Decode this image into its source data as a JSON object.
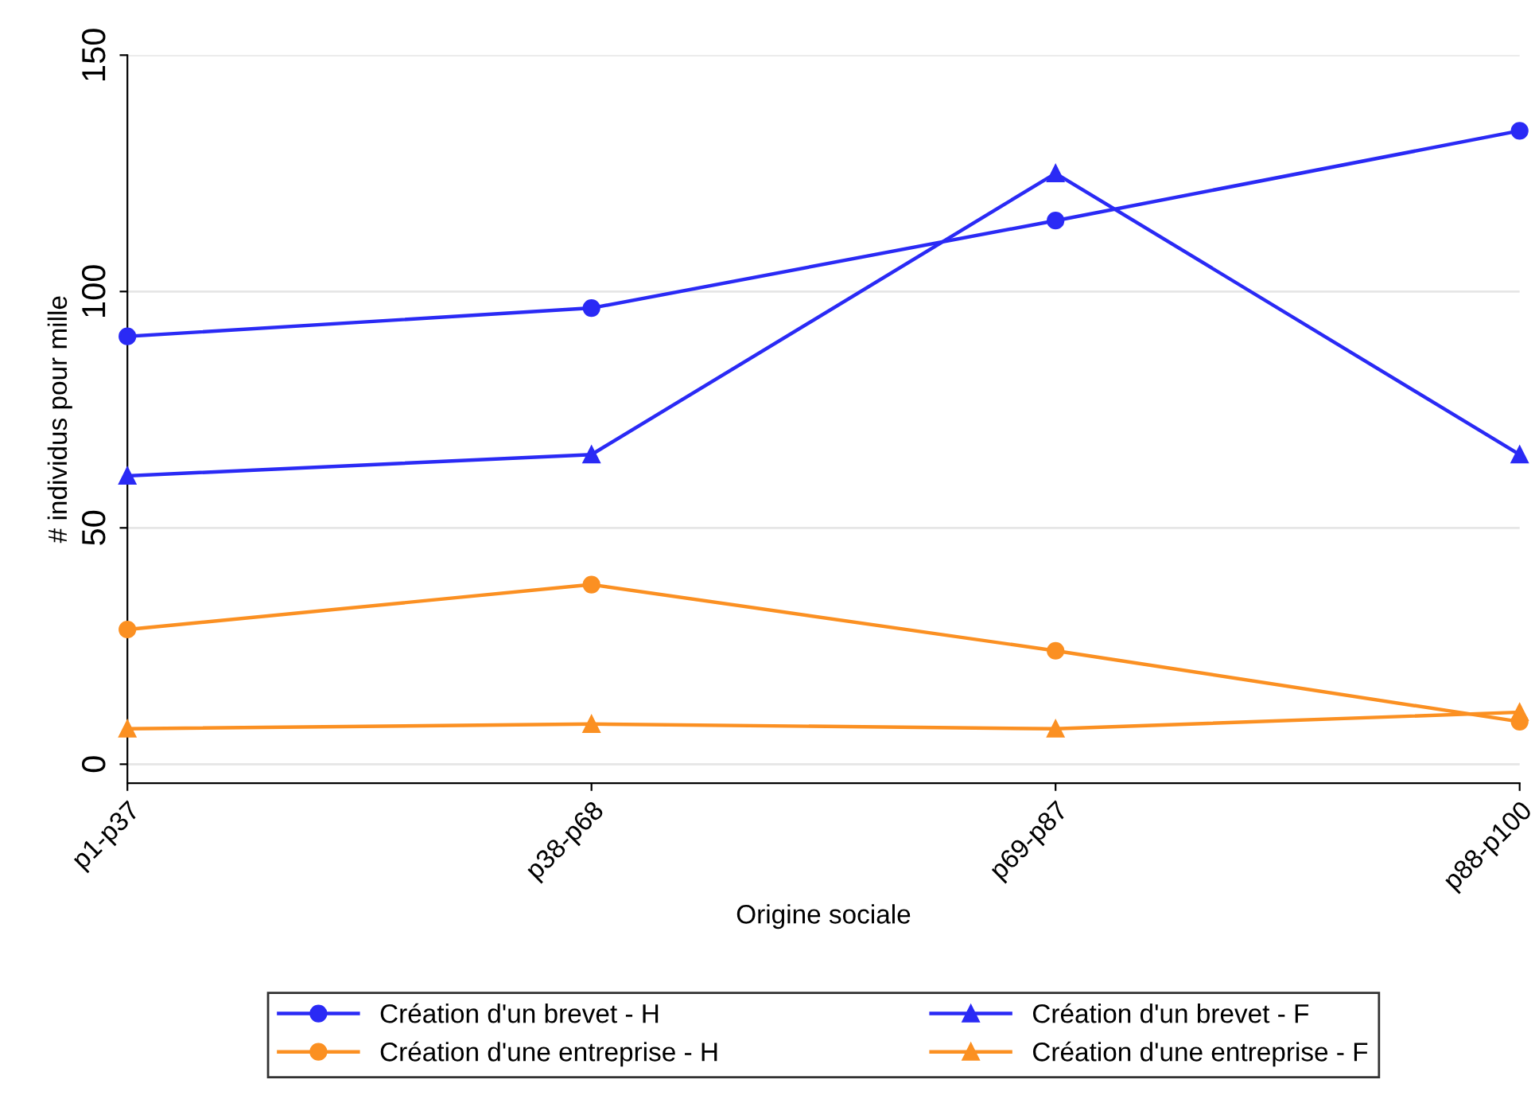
{
  "chart_data": {
    "type": "line",
    "xlabel": "Origine sociale",
    "ylabel": "# individus pour mille",
    "categories": [
      "p1-p37",
      "p38-p68",
      "p69-p87",
      "p88-p100"
    ],
    "series": [
      {
        "name": "Création d'un brevet - H",
        "color": "#2a2af5",
        "marker": "circle",
        "values": [
          90.5,
          96.5,
          115,
          134
        ]
      },
      {
        "name": "Création d'un brevet - F",
        "color": "#2a2af5",
        "marker": "triangle",
        "values": [
          61,
          65.5,
          125,
          65.5
        ]
      },
      {
        "name": "Création d'une entreprise - H",
        "color": "#fb9022",
        "marker": "circle",
        "values": [
          28.5,
          38,
          24,
          9
        ]
      },
      {
        "name": "Création d'une entreprise - F",
        "color": "#fb9022",
        "marker": "triangle",
        "values": [
          7.5,
          8.5,
          7.5,
          11
        ]
      }
    ],
    "ylim": [
      -4,
      150
    ],
    "yticks": [
      0,
      50,
      100,
      150
    ],
    "grid": "y",
    "legend": "bottom",
    "line_style": "solid"
  }
}
